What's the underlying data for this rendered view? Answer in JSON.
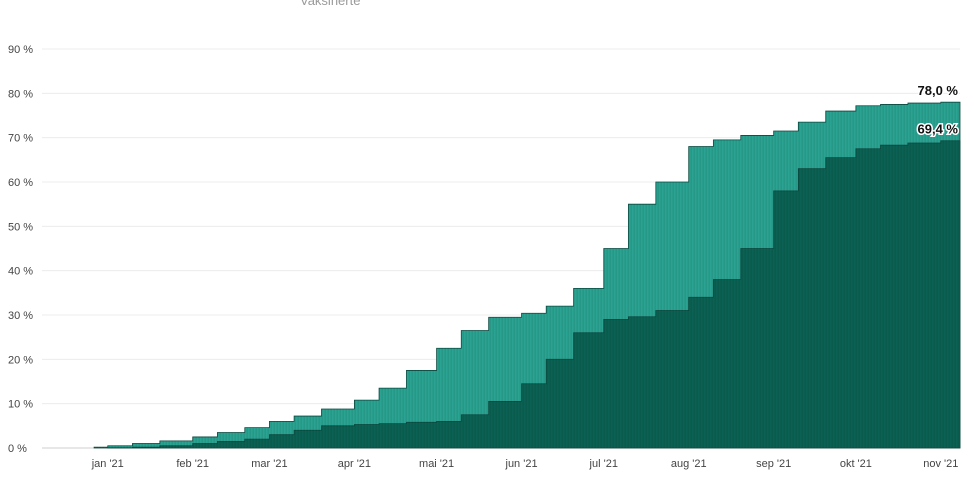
{
  "legend_clipped": "Vaksinerte",
  "chart_data": {
    "type": "area",
    "ylim": [
      0,
      90
    ],
    "ytick_labels": [
      "0 %",
      "10 %",
      "20 %",
      "30 %",
      "40 %",
      "50 %",
      "60 %",
      "70 %",
      "80 %",
      "90 %"
    ],
    "xtick_labels": [
      "jan '21",
      "feb '21",
      "mar '21",
      "apr '21",
      "mai '21",
      "jun '21",
      "jul '21",
      "aug '21",
      "sep '21",
      "okt '21",
      "nov '21"
    ],
    "xlim": [
      "2020-12-08",
      "2021-11-08"
    ],
    "grid": true,
    "colors": {
      "first_dose": "#2aa392",
      "fully_vaccinated": "#0b6153"
    },
    "series": [
      {
        "x": [
          "2020-12-27",
          "2021-01-01",
          "2021-01-10",
          "2021-01-20",
          "2021-02-01",
          "2021-02-10",
          "2021-02-20",
          "2021-03-01",
          "2021-03-10",
          "2021-03-20",
          "2021-04-01",
          "2021-04-10",
          "2021-04-20",
          "2021-05-01",
          "2021-05-10",
          "2021-05-20",
          "2021-06-01",
          "2021-06-10",
          "2021-06-20",
          "2021-07-01",
          "2021-07-10",
          "2021-07-20",
          "2021-08-01",
          "2021-08-10",
          "2021-08-20",
          "2021-09-01",
          "2021-09-10",
          "2021-09-20",
          "2021-10-01",
          "2021-10-10",
          "2021-10-20",
          "2021-11-01",
          "2021-11-08"
        ],
        "values": [
          0.2,
          0.5,
          1.0,
          1.6,
          2.5,
          3.5,
          4.6,
          6.0,
          7.2,
          8.8,
          10.8,
          13.5,
          17.5,
          22.5,
          26.5,
          29.5,
          30.4,
          32.0,
          36.0,
          45.0,
          55.0,
          60.0,
          68.0,
          69.5,
          70.5,
          71.5,
          73.5,
          76.0,
          77.2,
          77.5,
          77.8,
          78.0,
          78.0
        ]
      },
      {
        "x": [
          "2021-01-01",
          "2021-01-10",
          "2021-01-20",
          "2021-02-01",
          "2021-02-10",
          "2021-02-20",
          "2021-03-01",
          "2021-03-10",
          "2021-03-20",
          "2021-04-01",
          "2021-04-10",
          "2021-04-20",
          "2021-05-01",
          "2021-05-10",
          "2021-05-20",
          "2021-06-01",
          "2021-06-10",
          "2021-06-20",
          "2021-07-01",
          "2021-07-10",
          "2021-07-20",
          "2021-08-01",
          "2021-08-10",
          "2021-08-20",
          "2021-09-01",
          "2021-09-10",
          "2021-09-20",
          "2021-10-01",
          "2021-10-10",
          "2021-10-20",
          "2021-11-01",
          "2021-11-08"
        ],
        "values": [
          0.05,
          0.2,
          0.5,
          1.0,
          1.5,
          2.0,
          3.0,
          4.0,
          5.0,
          5.3,
          5.5,
          5.8,
          6.0,
          7.5,
          10.5,
          14.5,
          20.0,
          26.0,
          29.0,
          29.6,
          31.0,
          34.0,
          38.0,
          45.0,
          58.0,
          63.0,
          65.5,
          67.5,
          68.3,
          68.8,
          69.3,
          69.4
        ]
      }
    ],
    "end_labels": [
      "78,0 %",
      "69,4 %"
    ]
  }
}
